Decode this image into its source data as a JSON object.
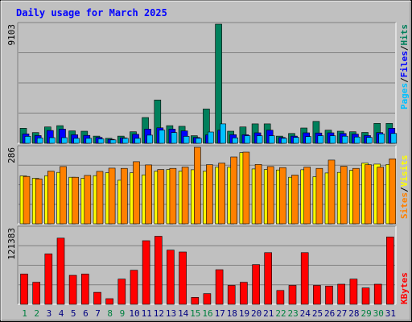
{
  "chart_data": {
    "type": "bar",
    "title": "Daily usage for March 2025",
    "categories": [
      "1",
      "2",
      "3",
      "4",
      "5",
      "6",
      "7",
      "8",
      "9",
      "10",
      "11",
      "12",
      "13",
      "14",
      "15",
      "16",
      "17",
      "18",
      "19",
      "20",
      "21",
      "22",
      "23",
      "24",
      "25",
      "26",
      "27",
      "28",
      "29",
      "30",
      "31"
    ],
    "weekend_days": [
      "1",
      "2",
      "8",
      "9",
      "15",
      "16",
      "22",
      "23",
      "29",
      "30"
    ],
    "colors": {
      "hits": "#00805c",
      "files": "#0000ff",
      "pages": "#00c0ff",
      "visits": "#ffff00",
      "sites": "#ff8000",
      "kbytes": "#ff0000",
      "title": "#0000ff",
      "weekday_label": "#000080",
      "weekend_label": "#008040",
      "plot_bg": "#c0c0c0",
      "frame_bg": "#c0c0c0",
      "grid": "#808080"
    },
    "panels": [
      {
        "id": "hits-files-pages",
        "ymax_label": "9103",
        "ymax": 9103,
        "legend": [
          {
            "text": "Pages",
            "color": "#00c0ff"
          },
          {
            "text": "/",
            "color": "#000000"
          },
          {
            "text": "Files",
            "color": "#0000ff"
          },
          {
            "text": "/",
            "color": "#000000"
          },
          {
            "text": "Hits",
            "color": "#00805c"
          }
        ],
        "series": [
          {
            "name": "Hits",
            "color": "#00805c",
            "values": [
              1150,
              820,
              1250,
              1350,
              950,
              920,
              550,
              380,
              550,
              880,
              1970,
              3310,
              1350,
              1300,
              580,
              2620,
              9103,
              920,
              1250,
              1480,
              1480,
              550,
              750,
              1170,
              1670,
              1000,
              920,
              880,
              830,
              1520,
              1520
            ]
          },
          {
            "name": "Files",
            "color": "#0000ff",
            "values": [
              720,
              590,
              980,
              1080,
              650,
              600,
              450,
              300,
              420,
              690,
              1080,
              1180,
              1080,
              950,
              440,
              640,
              1000,
              660,
              650,
              800,
              1000,
              440,
              550,
              800,
              790,
              800,
              750,
              700,
              590,
              820,
              1150
            ]
          },
          {
            "name": "Pages",
            "color": "#00c0ff",
            "values": [
              530,
              410,
              430,
              430,
              380,
              380,
              330,
              260,
              380,
              380,
              620,
              1000,
              820,
              530,
              380,
              860,
              1480,
              420,
              580,
              570,
              570,
              380,
              450,
              510,
              580,
              570,
              540,
              480,
              450,
              720,
              750
            ]
          }
        ]
      },
      {
        "id": "visits-sites",
        "ymax_label": "286",
        "ymax": 286,
        "legend": [
          {
            "text": "Sites",
            "color": "#ff8000"
          },
          {
            "text": "/",
            "color": "#000000"
          },
          {
            "text": "Visits",
            "color": "#ffff00"
          }
        ],
        "series": [
          {
            "name": "Visits",
            "color": "#ffff00",
            "values": [
              179,
              170,
              179,
              192,
              174,
              170,
              180,
              191,
              163,
              191,
              183,
              197,
              203,
              197,
              202,
              197,
              212,
              212,
              266,
              205,
              203,
              201,
              174,
              202,
              176,
              190,
              192,
              200,
              227,
              223,
              222
            ]
          },
          {
            "name": "Sites",
            "color": "#ff8000",
            "values": [
              177,
              168,
              197,
              214,
              174,
              181,
              196,
              208,
              207,
              232,
              220,
              203,
              207,
              212,
              286,
              221,
              227,
              250,
              268,
              222,
              214,
              210,
              182,
              212,
              207,
              238,
              215,
              207,
              221,
              212,
              243
            ]
          }
        ]
      },
      {
        "id": "kbytes",
        "ymax_label": "121383",
        "ymax": 121383,
        "legend": [
          {
            "text": "KBytes",
            "color": "#ff0000"
          }
        ],
        "series": [
          {
            "name": "KBytes",
            "color": "#ff0000",
            "values": [
              48000,
              35000,
              80000,
              105000,
              46000,
              48000,
              19000,
              9000,
              40000,
              54000,
              101000,
              108000,
              86000,
              83000,
              11000,
              17000,
              55000,
              30000,
              35000,
              63000,
              82000,
              22000,
              30000,
              82000,
              30000,
              29000,
              32000,
              40000,
              26000,
              32000,
              107000
            ]
          }
        ]
      }
    ]
  }
}
